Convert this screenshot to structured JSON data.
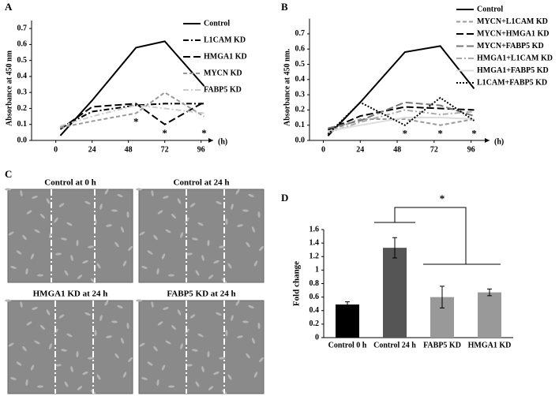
{
  "chart_data": [
    {
      "type": "line",
      "label": "A",
      "ylabel": "Absorbance at 450 nm",
      "xlabel": "(h)",
      "x": [
        3,
        24,
        53,
        72,
        98
      ],
      "xlim": [
        -16,
        104
      ],
      "xticks": [
        0,
        24,
        48,
        72,
        96
      ],
      "ylim": [
        0,
        0.75
      ],
      "yticks": [
        {
          "value": 0,
          "label": "0.0"
        },
        0.1,
        0.2,
        0.3,
        0.4,
        0.5,
        0.6,
        0.7
      ],
      "series": [
        {
          "name": "Control",
          "color": "#000000",
          "style": "solid",
          "values": [
            0.03,
            0.25,
            0.58,
            0.62,
            0.34
          ]
        },
        {
          "name": "L1CAM KD",
          "color": "#000000",
          "style": "dash-dot",
          "values": [
            0.08,
            0.18,
            0.22,
            0.23,
            0.23
          ]
        },
        {
          "name": "HMGA1 KD",
          "color": "#000000",
          "style": "long-dash",
          "values": [
            0.07,
            0.21,
            0.23,
            0.1,
            0.24
          ]
        },
        {
          "name": "MYCN KD",
          "color": "#999999",
          "style": "dashed",
          "values": [
            0.08,
            0.12,
            0.17,
            0.3,
            0.15
          ]
        },
        {
          "name": "FABP5 KD",
          "color": "#cccccc",
          "style": "dash-dot",
          "values": [
            0.09,
            0.15,
            0.22,
            0.2,
            0.17
          ]
        }
      ],
      "annotations": [
        {
          "text": "*",
          "x": 53,
          "y": 0.11
        },
        {
          "text": "*",
          "x": 72,
          "y": 0.04
        },
        {
          "text": "*",
          "x": 98,
          "y": 0.04
        }
      ]
    },
    {
      "type": "line",
      "label": "B",
      "ylabel": "Absorbance at 450 nm.",
      "xlabel": "(h)",
      "x": [
        3,
        24,
        53,
        76,
        98
      ],
      "xlim": [
        -9,
        108
      ],
      "xticks": [
        0,
        24,
        48,
        72,
        96
      ],
      "ylim": [
        0,
        0.8
      ],
      "yticks": [
        {
          "value": 0,
          "label": "0.0"
        },
        0.1,
        0.2,
        0.3,
        0.4,
        0.5,
        0.6,
        0.7
      ],
      "series": [
        {
          "name": "Control",
          "color": "#000000",
          "style": "solid",
          "values": [
            0.03,
            0.25,
            0.58,
            0.62,
            0.34
          ]
        },
        {
          "name": "MYCN+L1CAM KD",
          "color": "#999999",
          "style": "dashed",
          "values": [
            0.06,
            0.14,
            0.14,
            0.1,
            0.14
          ]
        },
        {
          "name": "MYCN+HMGA1 KD",
          "color": "#000000",
          "style": "long-dash",
          "values": [
            0.07,
            0.16,
            0.22,
            0.21,
            0.2
          ]
        },
        {
          "name": "MYCN+FABP5 KD",
          "color": "#777777",
          "style": "long-dash",
          "values": [
            0.08,
            0.13,
            0.25,
            0.23,
            0.16
          ]
        },
        {
          "name": "HMGA1+L1CAM KD",
          "color": "#aaaaaa",
          "style": "dash-dot",
          "values": [
            0.05,
            0.12,
            0.2,
            0.17,
            0.19
          ]
        },
        {
          "name": "HMGA1+FABP5 KD",
          "color": "#dddddd",
          "style": "solid",
          "values": [
            0.06,
            0.1,
            0.15,
            0.15,
            0.14
          ]
        },
        {
          "name": "L1CAM+FABP5 KD",
          "color": "#000000",
          "style": "dotted",
          "values": [
            0.04,
            0.25,
            0.1,
            0.28,
            0.13
          ]
        }
      ],
      "annotations": [
        {
          "text": "*",
          "x": 53,
          "y": 0.04
        },
        {
          "text": "*",
          "x": 76,
          "y": 0.04
        },
        {
          "text": "*",
          "x": 98,
          "y": 0.04
        }
      ]
    },
    {
      "type": "image-grid",
      "label": "C",
      "images": [
        "Control at 0 h",
        "Control at 24 h",
        "HMGA1 KD at 24 h",
        "FABP5 KD at 24 h"
      ]
    },
    {
      "type": "bar",
      "label": "D",
      "ylabel": "Fold change",
      "categories": [
        "Control 0 h",
        "Control 24 h",
        "FABP5 KD",
        "HMGA1 KD"
      ],
      "values": [
        0.49,
        1.33,
        0.6,
        0.67
      ],
      "errors": [
        0.04,
        0.15,
        0.16,
        0.05
      ],
      "colors": [
        "#000000",
        "#555555",
        "#999999",
        "#999999"
      ],
      "ylim": [
        0,
        1.6
      ],
      "yticks": [
        0,
        0.2,
        0.4,
        0.6,
        0.8,
        1,
        1.2,
        1.4,
        1.6
      ],
      "annotation": "*"
    }
  ]
}
